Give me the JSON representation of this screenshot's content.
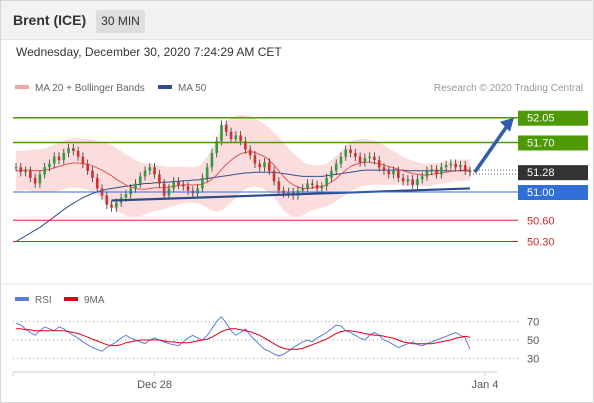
{
  "header": {
    "instrument": "Brent (ICE)",
    "timeframe": "30 MIN"
  },
  "datetime": "Wednesday, December 30, 2020 7:24:29 AM CET",
  "legend": {
    "ma20": "MA 20 + Bollinger Bands",
    "ma50": "MA 50",
    "ma20_color": "#e05555",
    "ma50_color": "#2f4f8f"
  },
  "credit": "Research © 2020 Trading Central",
  "rsi_legend": {
    "rsi": "RSI",
    "ma9": "9MA",
    "rsi_color": "#5b7fd6",
    "ma9_color": "#e0001b"
  },
  "chart_data": [
    {
      "type": "candlestick",
      "ylim": [
        49.7,
        52.3
      ],
      "levels": [
        {
          "label": "52.05",
          "value": 52.05,
          "kind": "resistance",
          "color": "#4e9a06"
        },
        {
          "label": "51.70",
          "value": 51.7,
          "kind": "resistance",
          "color": "#4e9a06"
        },
        {
          "label": "51.28",
          "value": 51.28,
          "kind": "last-price",
          "color": "#333333"
        },
        {
          "label": "51.00",
          "value": 51.0,
          "kind": "pivot",
          "color": "#2f6fd6"
        },
        {
          "label": "50.60",
          "value": 50.6,
          "kind": "support",
          "color": "#d62728"
        },
        {
          "label": "50.30",
          "value": 50.3,
          "kind": "support",
          "color": "#d62728"
        }
      ],
      "closes": [
        51.35,
        51.28,
        51.3,
        51.2,
        51.12,
        51.25,
        51.35,
        51.4,
        51.5,
        51.45,
        51.55,
        51.62,
        51.58,
        51.5,
        51.4,
        51.3,
        51.2,
        51.05,
        50.95,
        50.82,
        50.78,
        50.85,
        50.92,
        50.97,
        51.05,
        51.12,
        51.22,
        51.3,
        51.35,
        51.25,
        51.12,
        50.95,
        51.05,
        51.15,
        51.1,
        51.08,
        51.02,
        50.98,
        51.05,
        51.2,
        51.35,
        51.55,
        51.72,
        51.95,
        51.85,
        51.75,
        51.8,
        51.72,
        51.6,
        51.52,
        51.4,
        51.35,
        51.42,
        51.3,
        51.15,
        51.02,
        50.98,
        51.0,
        50.95,
        51.02,
        51.05,
        51.12,
        51.1,
        51.05,
        51.08,
        51.2,
        51.3,
        51.4,
        51.5,
        51.6,
        51.55,
        51.5,
        51.42,
        51.48,
        51.5,
        51.45,
        51.35,
        51.3,
        51.25,
        51.3,
        51.2,
        51.15,
        51.18,
        51.1,
        51.18,
        51.22,
        51.3,
        51.32,
        51.25,
        51.35,
        51.38,
        51.4,
        51.35,
        51.38,
        51.3,
        51.28
      ],
      "ma20": [
        51.3,
        51.3,
        51.31,
        51.31,
        51.3,
        51.3,
        51.31,
        51.32,
        51.34,
        51.36,
        51.38,
        51.4,
        51.41,
        51.41,
        51.4,
        51.39,
        51.37,
        51.34,
        51.31,
        51.27,
        51.23,
        51.18,
        51.14,
        51.1,
        51.07,
        51.05,
        51.04,
        51.04,
        51.05,
        51.06,
        51.06,
        51.06,
        51.07,
        51.08,
        51.09,
        51.1,
        51.1,
        51.1,
        51.1,
        51.11,
        51.14,
        51.18,
        51.24,
        51.32,
        51.39,
        51.45,
        51.5,
        51.54,
        51.56,
        51.57,
        51.56,
        51.53,
        51.5,
        51.45,
        51.38,
        51.3,
        51.22,
        51.15,
        51.1,
        51.07,
        51.05,
        51.05,
        51.06,
        51.07,
        51.08,
        51.1,
        51.14,
        51.19,
        51.25,
        51.31,
        51.36,
        51.39,
        51.41,
        51.42,
        51.42,
        51.41,
        51.4,
        51.38,
        51.36,
        51.34,
        51.32,
        51.3,
        51.28,
        51.26,
        51.25,
        51.24,
        51.24,
        51.25,
        51.26,
        51.27,
        51.28,
        51.29,
        51.3,
        51.31,
        51.31,
        51.31
      ],
      "ma50": [
        50.3,
        50.34,
        50.38,
        50.42,
        50.46,
        50.5,
        50.55,
        50.6,
        50.65,
        50.7,
        50.75,
        50.8,
        50.84,
        50.88,
        50.92,
        50.95,
        50.98,
        51.0,
        51.02,
        51.04,
        51.05,
        51.06,
        51.07,
        51.08,
        51.09,
        51.1,
        51.11,
        51.12,
        51.12,
        51.13,
        51.13,
        51.14,
        51.14,
        51.15,
        51.15,
        51.16,
        51.16,
        51.17,
        51.17,
        51.18,
        51.19,
        51.2,
        51.21,
        51.22,
        51.23,
        51.24,
        51.25,
        51.26,
        51.27,
        51.27,
        51.28,
        51.28,
        51.28,
        51.28,
        51.28,
        51.27,
        51.26,
        51.25,
        51.24,
        51.23,
        51.22,
        51.22,
        51.22,
        51.22,
        51.22,
        51.23,
        51.24,
        51.25,
        51.26,
        51.27,
        51.28,
        51.29,
        51.3,
        51.31,
        51.31,
        51.31,
        51.31,
        51.31,
        51.31,
        51.31,
        51.31,
        51.31,
        51.3,
        51.3,
        51.3,
        51.3,
        51.3,
        51.3,
        51.3,
        51.3,
        51.3,
        51.3,
        51.3,
        51.3,
        51.3,
        51.3
      ],
      "bb_width": [
        0.28,
        0.28,
        0.28,
        0.29,
        0.3,
        0.3,
        0.31,
        0.32,
        0.33,
        0.34,
        0.34,
        0.35,
        0.35,
        0.35,
        0.35,
        0.36,
        0.37,
        0.38,
        0.4,
        0.42,
        0.43,
        0.44,
        0.44,
        0.43,
        0.42,
        0.4,
        0.38,
        0.36,
        0.34,
        0.33,
        0.32,
        0.3,
        0.29,
        0.28,
        0.27,
        0.26,
        0.25,
        0.25,
        0.26,
        0.3,
        0.36,
        0.44,
        0.52,
        0.58,
        0.6,
        0.6,
        0.58,
        0.55,
        0.52,
        0.5,
        0.48,
        0.47,
        0.46,
        0.46,
        0.46,
        0.47,
        0.48,
        0.47,
        0.45,
        0.42,
        0.38,
        0.34,
        0.32,
        0.31,
        0.3,
        0.3,
        0.31,
        0.32,
        0.33,
        0.34,
        0.35,
        0.35,
        0.34,
        0.33,
        0.32,
        0.31,
        0.3,
        0.28,
        0.26,
        0.24,
        0.22,
        0.2,
        0.19,
        0.18,
        0.17,
        0.16,
        0.16,
        0.16,
        0.15,
        0.15,
        0.15,
        0.15,
        0.15,
        0.15,
        0.15,
        0.15
      ],
      "trendline": {
        "from": [
          20,
          50.88
        ],
        "to": [
          95,
          51.05
        ]
      },
      "projection": {
        "from": [
          96,
          51.28
        ],
        "to_level": 52.05
      },
      "x_ticks": [
        {
          "index": 29,
          "label": "Dec 28"
        },
        {
          "index": 95,
          "label": "Jan 4"
        }
      ]
    },
    {
      "type": "line",
      "name": "RSI",
      "ylim": [
        20,
        80
      ],
      "y_ticks": [
        70,
        50,
        30
      ],
      "rsi": [
        68,
        66,
        62,
        58,
        55,
        60,
        64,
        62,
        60,
        64,
        62,
        58,
        55,
        52,
        48,
        45,
        42,
        40,
        38,
        42,
        45,
        48,
        52,
        55,
        52,
        50,
        48,
        46,
        50,
        52,
        50,
        48,
        46,
        45,
        44,
        48,
        52,
        55,
        52,
        50,
        55,
        62,
        70,
        75,
        68,
        60,
        55,
        58,
        62,
        55,
        50,
        45,
        40,
        38,
        35,
        33,
        35,
        38,
        42,
        45,
        48,
        50,
        48,
        52,
        55,
        58,
        62,
        66,
        65,
        60,
        58,
        55,
        52,
        50,
        55,
        58,
        55,
        50,
        48,
        45,
        42,
        44,
        46,
        48,
        45,
        44,
        46,
        48,
        50,
        52,
        54,
        56,
        58,
        55,
        52,
        40
      ],
      "ma9": [
        62,
        62,
        61,
        61,
        60,
        60,
        60,
        60,
        60,
        60,
        60,
        59,
        58,
        57,
        55,
        53,
        51,
        49,
        47,
        45,
        44,
        44,
        45,
        47,
        48,
        49,
        50,
        50,
        50,
        50,
        50,
        49,
        48,
        48,
        47,
        47,
        47,
        48,
        49,
        50,
        51,
        53,
        56,
        59,
        61,
        62,
        62,
        61,
        60,
        59,
        57,
        55,
        52,
        49,
        46,
        43,
        41,
        40,
        40,
        40,
        41,
        43,
        45,
        47,
        49,
        51,
        54,
        57,
        59,
        60,
        60,
        59,
        58,
        57,
        56,
        55,
        55,
        54,
        53,
        52,
        50,
        48,
        47,
        46,
        46,
        46,
        46,
        46,
        47,
        48,
        49,
        50,
        52,
        53,
        54,
        53
      ]
    }
  ]
}
